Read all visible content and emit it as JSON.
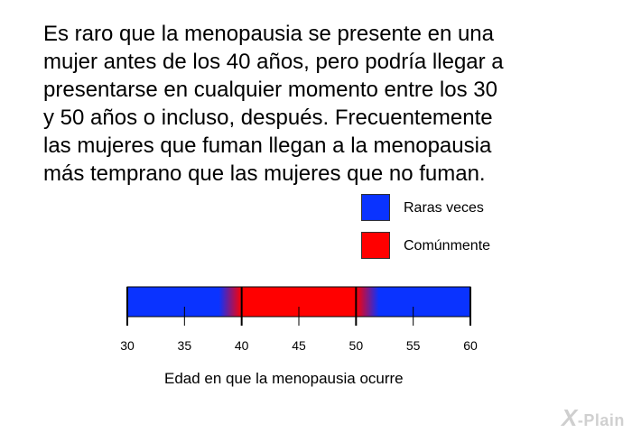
{
  "paragraph": [
    "Es raro que la menopausia se presente en una",
    "mujer antes de los 40 años, pero podría llegar a",
    "presentarse en cualquier momento entre los 30",
    "y 50 años o incluso, después. Frecuentemente",
    "las mujeres que fuman llegan a la menopausia",
    "más temprano que las mujeres que no fuman."
  ],
  "legend": [
    {
      "label": "Raras veces",
      "color": "#0a33ff"
    },
    {
      "label": "Comúnmente",
      "color": "#ff0000"
    }
  ],
  "chart_data": {
    "type": "bar",
    "xlabel": "Edad en que la menopausia ocurre",
    "xlim": [
      30,
      60
    ],
    "ticks": [
      30,
      35,
      40,
      45,
      50,
      55,
      60
    ],
    "tick_labels": [
      "30",
      "35",
      "40",
      "45",
      "50",
      "55",
      "60"
    ],
    "segments": [
      {
        "label": "Raras veces",
        "start": 30,
        "end": 40
      },
      {
        "label": "Comúnmente",
        "start": 40,
        "end": 50
      },
      {
        "label": "Raras veces",
        "start": 50,
        "end": 60
      }
    ]
  },
  "logo": {
    "text": "X-Plain"
  }
}
